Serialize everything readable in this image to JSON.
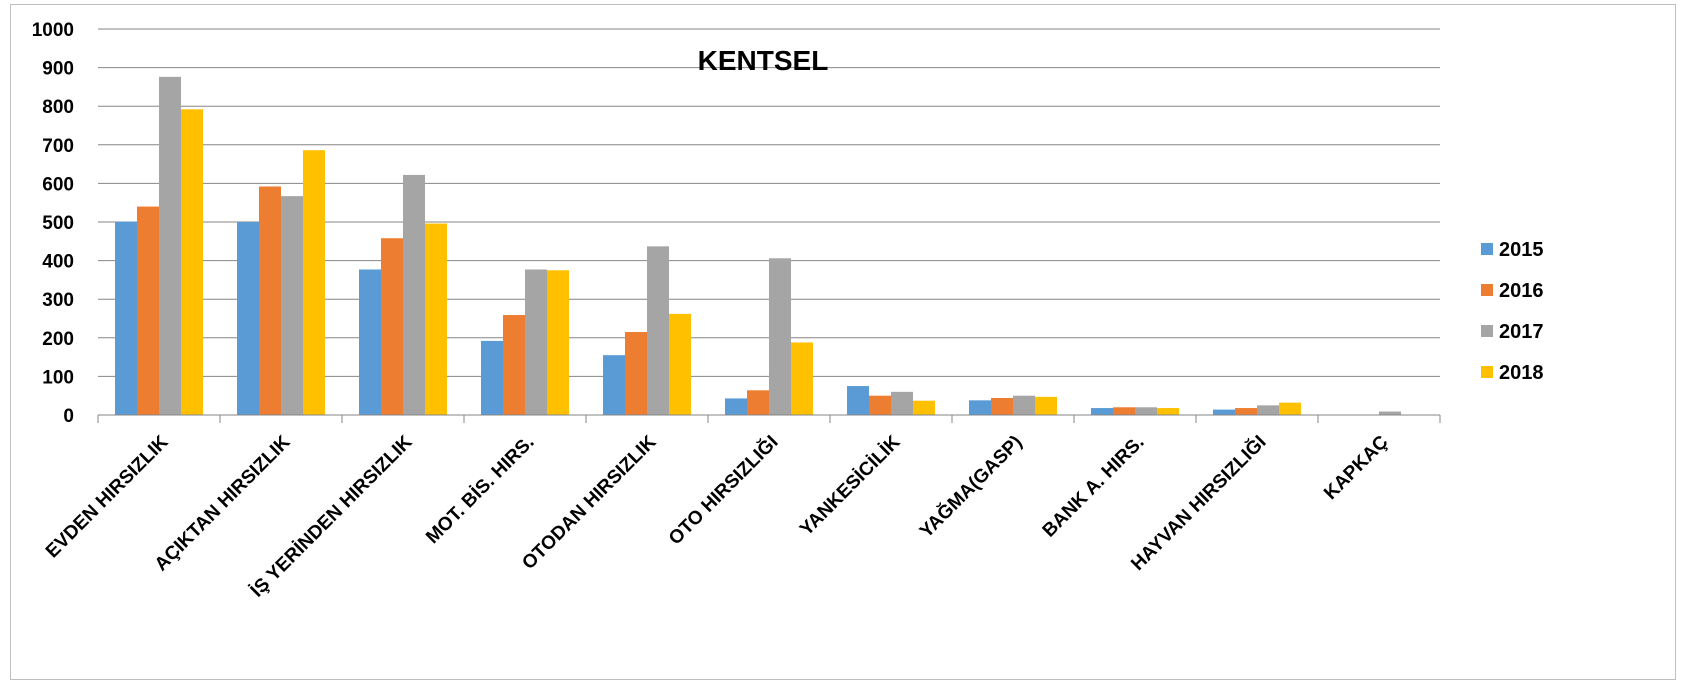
{
  "chart_data": {
    "type": "bar",
    "title": "KENTSEL",
    "xlabel": "",
    "ylabel": "",
    "ylim": [
      0,
      1000
    ],
    "yticks": [
      0,
      100,
      200,
      300,
      400,
      500,
      600,
      700,
      800,
      900,
      1000
    ],
    "grid": true,
    "legend_position": "right",
    "categories": [
      "EVDEN HIRSIZLIK",
      "AÇIKTAN HIRSIZLIK",
      "İŞ YERİNDEN HIRSIZLIK",
      "MOT. BİS. HIRS.",
      "OTODAN HIRSIZLIK",
      "OTO HIRSIZLIĞI",
      "YANKESİCİLİK",
      "YAĞMA(GASP)",
      "BANK A. HIRS.",
      "HAYVAN HIRSIZLIĞI",
      "KAPKAÇ"
    ],
    "series": [
      {
        "name": "2015",
        "color": "#5b9bd5",
        "values": [
          501,
          500,
          377,
          192,
          155,
          43,
          75,
          38,
          18,
          14,
          0
        ]
      },
      {
        "name": "2016",
        "color": "#ed7d31",
        "values": [
          540,
          592,
          458,
          259,
          215,
          64,
          50,
          44,
          20,
          18,
          0
        ]
      },
      {
        "name": "2017",
        "color": "#a5a5a5",
        "values": [
          876,
          567,
          622,
          377,
          437,
          406,
          60,
          50,
          20,
          25,
          9
        ]
      },
      {
        "name": "2018",
        "color": "#ffc000",
        "values": [
          792,
          686,
          496,
          375,
          262,
          188,
          37,
          47,
          18,
          32,
          0
        ]
      }
    ]
  }
}
